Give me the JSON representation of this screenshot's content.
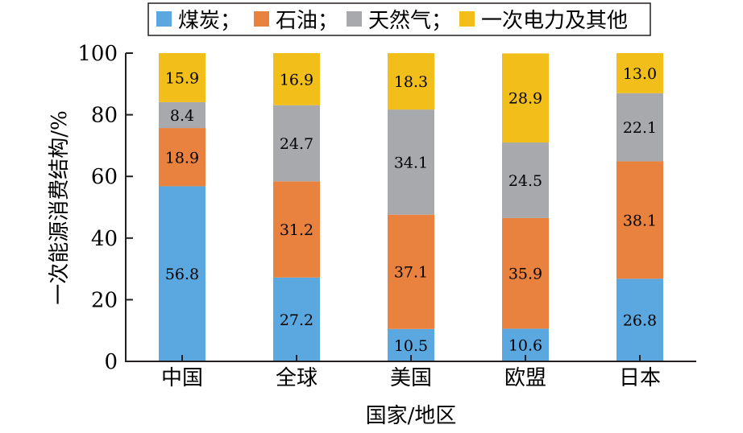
{
  "chart_data": {
    "type": "bar",
    "stacked": true,
    "categories": [
      "中国",
      "全球",
      "美国",
      "欧盟",
      "日本"
    ],
    "series": [
      {
        "name": "煤炭",
        "values": [
          56.8,
          27.2,
          10.5,
          10.6,
          26.8
        ],
        "color": "#5ba8e0"
      },
      {
        "name": "石油",
        "values": [
          18.9,
          31.2,
          37.1,
          35.9,
          38.1
        ],
        "color": "#e8823e"
      },
      {
        "name": "天然气",
        "values": [
          8.4,
          24.7,
          34.1,
          24.5,
          22.1
        ],
        "color": "#a7a9ac"
      },
      {
        "name": "一次电力及其他",
        "values": [
          15.9,
          16.9,
          18.3,
          28.9,
          13.0
        ],
        "color": "#f2be1a"
      }
    ],
    "legend_separator": "；",
    "legend_position": "top",
    "xlabel": "国家/地区",
    "ylabel": "一次能源消费结构/%",
    "ylim": [
      0,
      100
    ],
    "yticks": [
      "0",
      "20",
      "40",
      "60",
      "80",
      "100"
    ],
    "grid": false
  }
}
